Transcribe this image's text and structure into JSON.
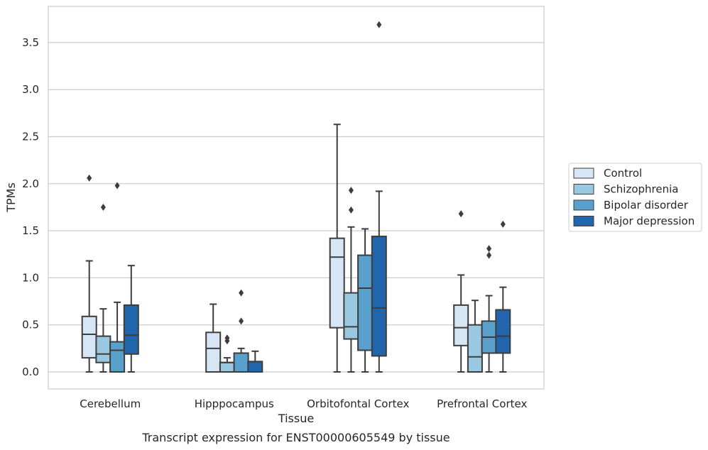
{
  "chart_data": {
    "type": "box",
    "caption": "Transcript expression for ENST00000605549 by tissue",
    "xlabel": "Tissue",
    "ylabel": "TPMs",
    "ylim": [
      -0.18,
      3.9
    ],
    "yticks": [
      0.0,
      0.5,
      1.0,
      1.5,
      2.0,
      2.5,
      3.0,
      3.5
    ],
    "ytick_labels": [
      "0.0",
      "0.5",
      "1.0",
      "1.5",
      "2.0",
      "2.5",
      "3.0",
      "3.5"
    ],
    "grid": "horizontal",
    "legend_position": "right",
    "categories": [
      "Cerebellum",
      "Hipppocampus",
      "Orbitofontal Cortex",
      "Prefrontal Cortex"
    ],
    "series": [
      {
        "name": "Control",
        "color": "#d6e6f4",
        "boxes": [
          {
            "whislo": 0.0,
            "q1": 0.15,
            "med": 0.4,
            "q3": 0.59,
            "whishi": 1.18,
            "fliers": [
              2.06
            ]
          },
          {
            "whislo": 0.0,
            "q1": 0.0,
            "med": 0.25,
            "q3": 0.42,
            "whishi": 0.72,
            "fliers": []
          },
          {
            "whislo": 0.0,
            "q1": 0.47,
            "med": 1.22,
            "q3": 1.42,
            "whishi": 2.63,
            "fliers": []
          },
          {
            "whislo": 0.0,
            "q1": 0.28,
            "med": 0.47,
            "q3": 0.71,
            "whishi": 1.03,
            "fliers": [
              1.68
            ]
          }
        ]
      },
      {
        "name": "Schizophrenia",
        "color": "#9ac8e0",
        "boxes": [
          {
            "whislo": 0.0,
            "q1": 0.1,
            "med": 0.19,
            "q3": 0.38,
            "whishi": 0.67,
            "fliers": [
              1.75
            ]
          },
          {
            "whislo": 0.0,
            "q1": 0.0,
            "med": 0.1,
            "q3": 0.1,
            "whishi": 0.15,
            "fliers": [
              0.33,
              0.36
            ]
          },
          {
            "whislo": 0.0,
            "q1": 0.35,
            "med": 0.48,
            "q3": 0.84,
            "whishi": 1.54,
            "fliers": [
              1.72,
              1.93
            ]
          },
          {
            "whislo": 0.0,
            "q1": 0.0,
            "med": 0.16,
            "q3": 0.5,
            "whishi": 0.76,
            "fliers": []
          }
        ]
      },
      {
        "name": "Bipolar disorder",
        "color": "#5aa0cd",
        "boxes": [
          {
            "whislo": 0.0,
            "q1": 0.0,
            "med": 0.23,
            "q3": 0.32,
            "whishi": 0.74,
            "fliers": [
              1.98
            ]
          },
          {
            "whislo": 0.0,
            "q1": 0.0,
            "med": 0.2,
            "q3": 0.2,
            "whishi": 0.25,
            "fliers": [
              0.54,
              0.84
            ]
          },
          {
            "whislo": 0.0,
            "q1": 0.23,
            "med": 0.89,
            "q3": 1.24,
            "whishi": 1.52,
            "fliers": []
          },
          {
            "whislo": 0.0,
            "q1": 0.2,
            "med": 0.37,
            "q3": 0.54,
            "whishi": 0.81,
            "fliers": [
              1.24,
              1.31
            ]
          }
        ]
      },
      {
        "name": "Major depression",
        "color": "#2166ac",
        "boxes": [
          {
            "whislo": 0.0,
            "q1": 0.19,
            "med": 0.39,
            "q3": 0.71,
            "whishi": 1.13,
            "fliers": []
          },
          {
            "whislo": 0.0,
            "q1": 0.0,
            "med": 0.11,
            "q3": 0.11,
            "whishi": 0.22,
            "fliers": []
          },
          {
            "whislo": 0.0,
            "q1": 0.17,
            "med": 0.68,
            "q3": 1.44,
            "whishi": 1.92,
            "fliers": [
              3.69
            ]
          },
          {
            "whislo": 0.0,
            "q1": 0.2,
            "med": 0.38,
            "q3": 0.66,
            "whishi": 0.9,
            "fliers": [
              1.57
            ]
          }
        ]
      }
    ]
  }
}
